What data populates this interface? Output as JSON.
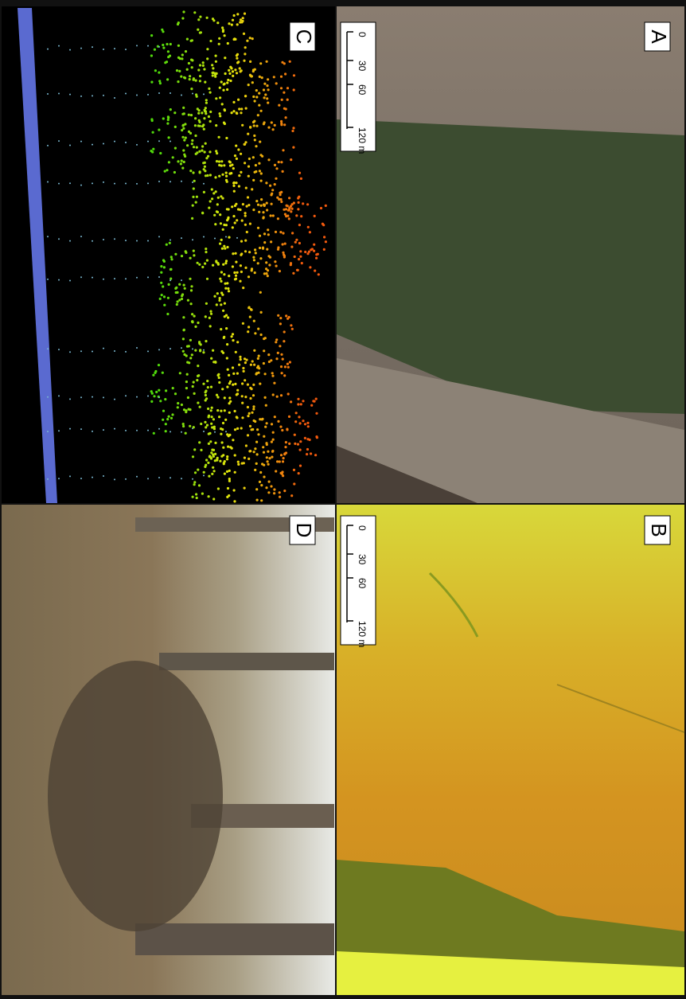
{
  "panels": [
    {
      "label": "A",
      "scale_bar": [
        "0",
        "30",
        "60",
        "120 m"
      ]
    },
    {
      "label": "B",
      "scale_bar": [
        "0",
        "30",
        "60",
        "120 m"
      ]
    },
    {
      "label": "C"
    },
    {
      "label": "D"
    }
  ]
}
